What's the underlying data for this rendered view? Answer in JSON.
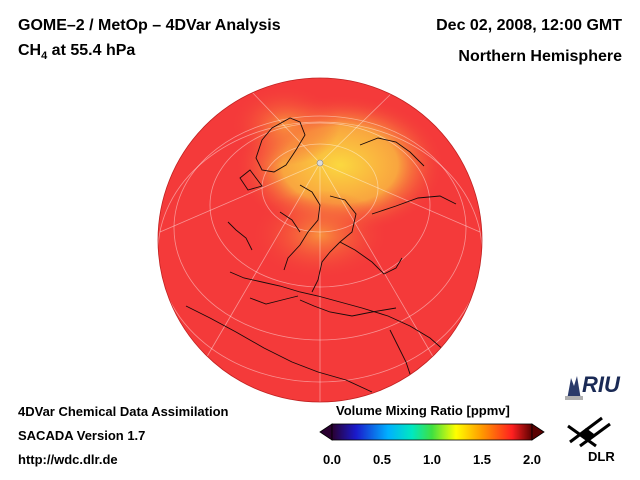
{
  "header": {
    "title_line1": "GOME–2 / MetOp – 4DVar Analysis",
    "species": "CH",
    "species_sub": "4",
    "level": " at 55.4 hPa",
    "datetime": "Dec 02, 2008, 12:00 GMT",
    "region": "Northern Hemisphere"
  },
  "footer": {
    "line1": "4DVar Chemical Data Assimilation",
    "line2": "SACADA Version 1.7",
    "line3": "http://wdc.dlr.de"
  },
  "colorbar": {
    "title": "Volume Mixing Ratio [ppmv]",
    "min": 0.0,
    "max": 2.0,
    "ticks": [
      "0.0",
      "0.5",
      "1.0",
      "1.5",
      "2.0"
    ],
    "stops": [
      "#2a0030",
      "#1a1acc",
      "#00b0ff",
      "#00e8c0",
      "#40e040",
      "#ffff00",
      "#ff9900",
      "#ff2020",
      "#5a0000"
    ]
  },
  "map": {
    "projection": "orthographic",
    "center": "North Pole",
    "base_color": "#f43a3a",
    "high_color": "#fbd23a"
  },
  "logos": {
    "riu": "RIU",
    "dlr": "DLR"
  }
}
